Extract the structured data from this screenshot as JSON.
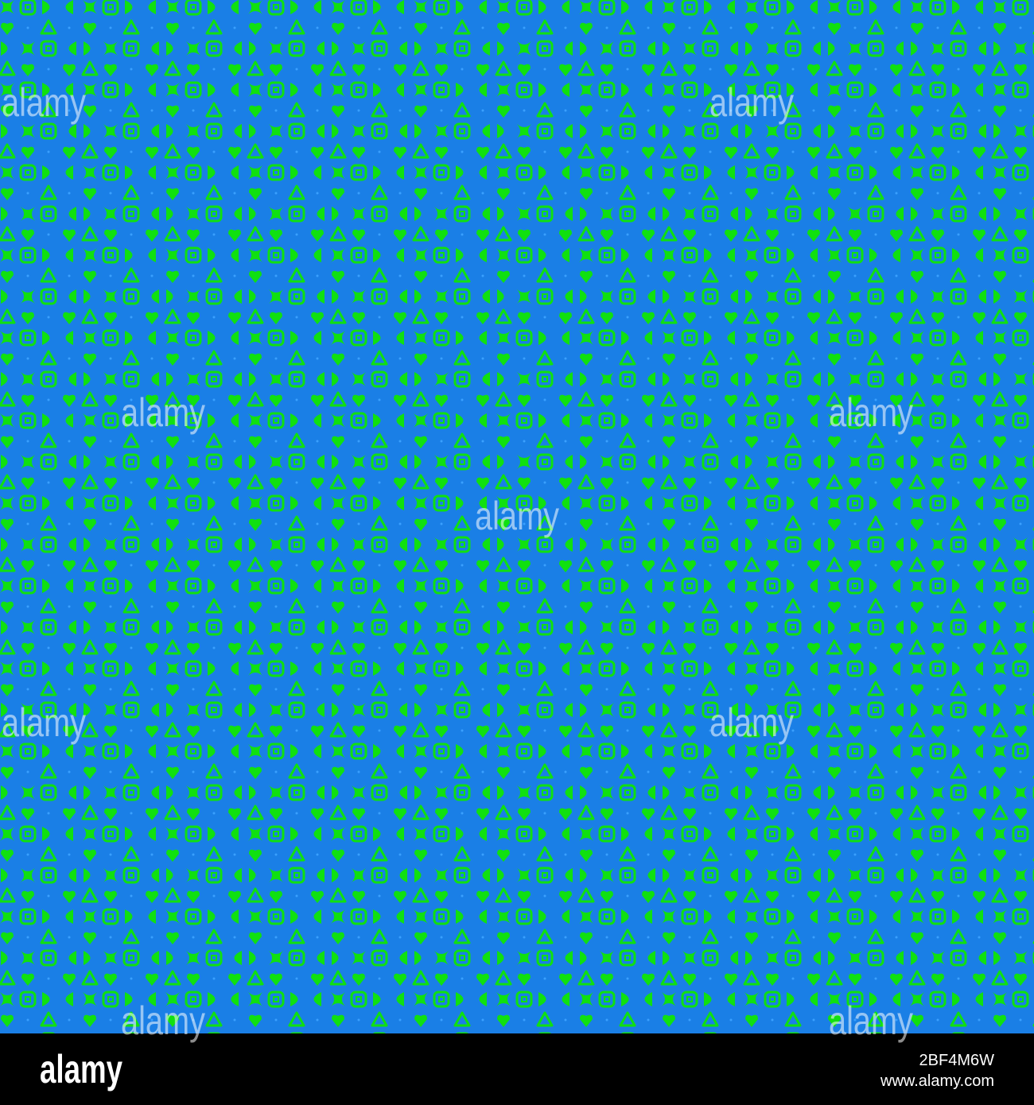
{
  "watermark": "alamy",
  "footer": {
    "logo": "alamy",
    "image_id": "2BF4M6W",
    "url": "www.alamy.com"
  }
}
